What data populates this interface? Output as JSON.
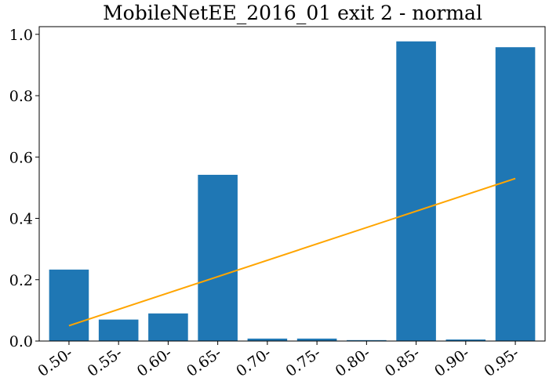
{
  "chart_data": {
    "type": "bar",
    "title": "MobileNetEE_2016_01 exit 2 - normal",
    "xlabel": "",
    "ylabel": "",
    "categories": [
      "0.50-",
      "0.55-",
      "0.60-",
      "0.65-",
      "0.70-",
      "0.75-",
      "0.80-",
      "0.85-",
      "0.90-",
      "0.95-"
    ],
    "values": [
      0.233,
      0.07,
      0.09,
      0.542,
      0.008,
      0.008,
      0.003,
      0.977,
      0.005,
      0.958
    ],
    "ylim": [
      0,
      1.025
    ],
    "yticks": [
      0.0,
      0.2,
      0.4,
      0.6,
      0.8,
      1.0
    ],
    "ytick_labels": [
      "0.0",
      "0.2",
      "0.4",
      "0.6",
      "0.8",
      "1.0"
    ],
    "trend_line": {
      "start": 0.05,
      "end": 0.53
    },
    "grid": false,
    "legend": "none",
    "colors": {
      "bar": "#1f77b4",
      "trend": "#ffa500",
      "axes": "#000000"
    }
  }
}
